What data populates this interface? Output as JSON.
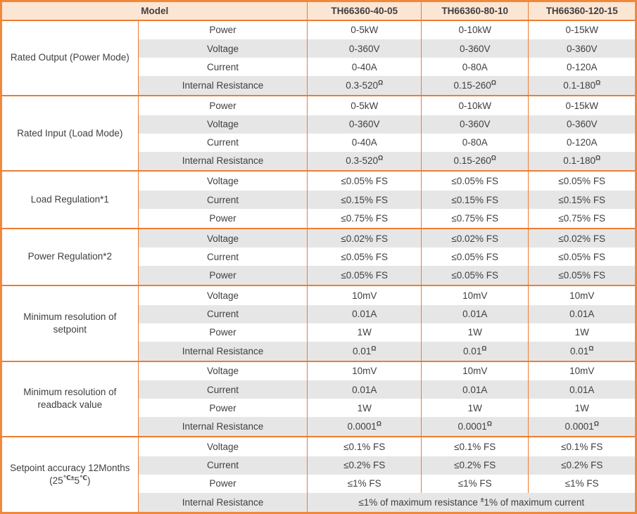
{
  "colors": {
    "border_orange": "#ED7D31",
    "border_outer": "#F0883B",
    "header_bg": "#FBE5D3",
    "row_alt_bg": "#E7E6E6",
    "header_text": "#1F1F1F",
    "body_text": "#3F3F3F"
  },
  "header": {
    "model_label": "Model",
    "columns": [
      "TH66360-40-05",
      "TH66360-80-10",
      "TH66360-120-15"
    ]
  },
  "groups": [
    {
      "label_lines": [
        [
          {
            "t": "Rated Output (Power Mode)"
          }
        ]
      ],
      "rows": [
        {
          "param": "Power",
          "values": [
            "0-5kW",
            "0-10kW",
            "0-15kW"
          ]
        },
        {
          "param": "Voltage",
          "values": [
            "0-360V",
            "0-360V",
            "0-360V"
          ]
        },
        {
          "param": "Current",
          "values": [
            "0-40A",
            "0-80A",
            "0-120A"
          ]
        },
        {
          "param": "Internal Resistance",
          "values": [
            [
              {
                "t": "0.3-520"
              },
              {
                "s": "Ω"
              }
            ],
            [
              {
                "t": "0.15-260"
              },
              {
                "s": "Ω"
              }
            ],
            [
              {
                "t": "0.1-180"
              },
              {
                "s": "Ω"
              }
            ]
          ]
        }
      ]
    },
    {
      "label_lines": [
        [
          {
            "t": "Rated Input (Load Mode)"
          }
        ]
      ],
      "rows": [
        {
          "param": "Power",
          "values": [
            "0-5kW",
            "0-10kW",
            "0-15kW"
          ]
        },
        {
          "param": "Voltage",
          "values": [
            "0-360V",
            "0-360V",
            "0-360V"
          ]
        },
        {
          "param": "Current",
          "values": [
            "0-40A",
            "0-80A",
            "0-120A"
          ]
        },
        {
          "param": "Internal Resistance",
          "values": [
            [
              {
                "t": "0.3-520"
              },
              {
                "s": "Ω"
              }
            ],
            [
              {
                "t": "0.15-260"
              },
              {
                "s": "Ω"
              }
            ],
            [
              {
                "t": "0.1-180"
              },
              {
                "s": "Ω"
              }
            ]
          ]
        }
      ]
    },
    {
      "label_lines": [
        [
          {
            "t": "Load Regulation*1"
          }
        ]
      ],
      "rows": [
        {
          "param": "Voltage",
          "values": [
            "≤0.05% FS",
            "≤0.05% FS",
            "≤0.05% FS"
          ]
        },
        {
          "param": "Current",
          "values": [
            "≤0.15% FS",
            "≤0.15% FS",
            "≤0.15% FS"
          ]
        },
        {
          "param": "Power",
          "values": [
            "≤0.75% FS",
            "≤0.75% FS",
            "≤0.75% FS"
          ]
        }
      ]
    },
    {
      "label_lines": [
        [
          {
            "t": "Power Regulation*2"
          }
        ]
      ],
      "rows": [
        {
          "param": "Voltage",
          "values": [
            "≤0.02% FS",
            "≤0.02% FS",
            "≤0.02% FS"
          ]
        },
        {
          "param": "Current",
          "values": [
            "≤0.05% FS",
            "≤0.05% FS",
            "≤0.05% FS"
          ]
        },
        {
          "param": "Power",
          "values": [
            "≤0.05% FS",
            "≤0.05% FS",
            "≤0.05% FS"
          ]
        }
      ]
    },
    {
      "label_lines": [
        [
          {
            "t": "Minimum resolution of"
          }
        ],
        [
          {
            "t": "setpoint"
          }
        ]
      ],
      "rows": [
        {
          "param": "Voltage",
          "values": [
            "10mV",
            "10mV",
            "10mV"
          ]
        },
        {
          "param": "Current",
          "values": [
            "0.01A",
            "0.01A",
            "0.01A"
          ]
        },
        {
          "param": "Power",
          "values": [
            "1W",
            "1W",
            "1W"
          ]
        },
        {
          "param": "Internal Resistance",
          "values": [
            [
              {
                "t": "0.01"
              },
              {
                "s": "Ω"
              }
            ],
            [
              {
                "t": "0.01"
              },
              {
                "s": "Ω"
              }
            ],
            [
              {
                "t": "0.01"
              },
              {
                "s": "Ω"
              }
            ]
          ]
        }
      ]
    },
    {
      "label_lines": [
        [
          {
            "t": "Minimum resolution of"
          }
        ],
        [
          {
            "t": "readback value"
          }
        ]
      ],
      "rows": [
        {
          "param": "Voltage",
          "values": [
            "10mV",
            "10mV",
            "10mV"
          ]
        },
        {
          "param": "Current",
          "values": [
            "0.01A",
            "0.01A",
            "0.01A"
          ]
        },
        {
          "param": "Power",
          "values": [
            "1W",
            "1W",
            "1W"
          ]
        },
        {
          "param": "Internal Resistance",
          "values": [
            [
              {
                "t": "0.0001"
              },
              {
                "s": "Ω"
              }
            ],
            [
              {
                "t": "0.0001"
              },
              {
                "s": "Ω"
              }
            ],
            [
              {
                "t": "0.0001"
              },
              {
                "s": "Ω"
              }
            ]
          ]
        }
      ]
    },
    {
      "label_lines": [
        [
          {
            "t": "Setpoint accuracy 12Months"
          }
        ],
        [
          {
            "t": "(25"
          },
          {
            "s": "℃±"
          },
          {
            "t": "5"
          },
          {
            "s": "℃"
          },
          {
            "t": ")"
          }
        ]
      ],
      "rows": [
        {
          "param": "Voltage",
          "values": [
            "≤0.1% FS",
            "≤0.1% FS",
            "≤0.1% FS"
          ]
        },
        {
          "param": "Current",
          "values": [
            "≤0.2% FS",
            "≤0.2% FS",
            "≤0.2% FS"
          ]
        },
        {
          "param": "Power",
          "values": [
            "≤1% FS",
            "≤1% FS",
            "≤1% FS"
          ]
        },
        {
          "param": "Internal Resistance",
          "values": [
            {
              "colspan": 3,
              "segments": [
                {
                  "t": "≤1% of maximum resistance "
                },
                {
                  "s": "±"
                },
                {
                  "t": "1% of maximum current"
                }
              ]
            }
          ]
        }
      ]
    }
  ]
}
